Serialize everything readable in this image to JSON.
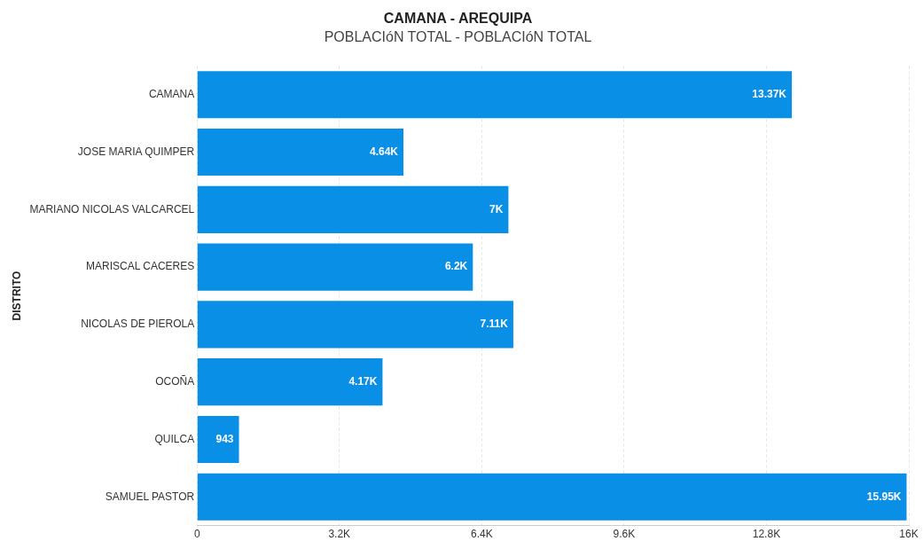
{
  "chart_data": {
    "type": "bar",
    "orientation": "horizontal",
    "title": "CAMANA - AREQUIPA",
    "subtitle": "POBLACIóN TOTAL - POBLACIóN TOTAL",
    "ylabel": "DISTRITO",
    "categories": [
      "CAMANA",
      "JOSE MARIA QUIMPER",
      "MARIANO NICOLAS VALCARCEL",
      "MARISCAL CACERES",
      "NICOLAS DE PIEROLA",
      "OCOÑA",
      "QUILCA",
      "SAMUEL PASTOR"
    ],
    "values": [
      13370,
      4640,
      7000,
      6200,
      7110,
      4170,
      943,
      15950
    ],
    "value_labels": [
      "13.37K",
      "4.64K",
      "7K",
      "6.2K",
      "7.11K",
      "4.17K",
      "943",
      "15.95K"
    ],
    "color": "#0a8fe6",
    "xlim": [
      0,
      16000
    ],
    "xticks": [
      0,
      {
        "value": 3200,
        "label": "3.2K"
      },
      {
        "value": 6400,
        "label": "6.4K"
      },
      {
        "value": 9600,
        "label": "9.6K"
      },
      {
        "value": 12800,
        "label": "12.8K"
      },
      {
        "value": 16000,
        "label": "16K"
      }
    ],
    "grid": "x",
    "legend": false
  }
}
